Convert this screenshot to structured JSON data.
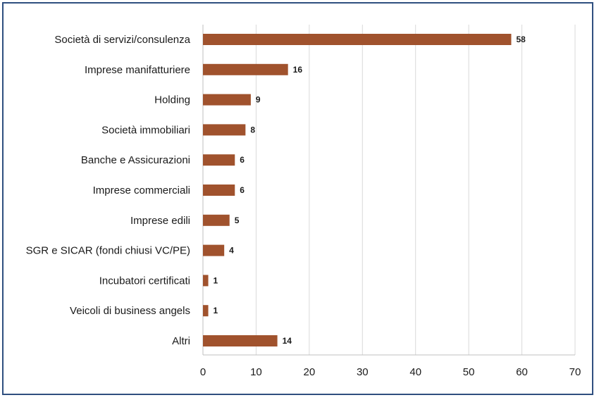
{
  "chart_data": {
    "type": "bar",
    "orientation": "horizontal",
    "categories": [
      "Società di servizi/consulenza",
      "Imprese manifatturiere",
      "Holding",
      "Società immobiliari",
      "Banche e Assicurazioni",
      "Imprese commerciali",
      "Imprese edili",
      "SGR e SICAR (fondi chiusi VC/PE)",
      "Incubatori certificati",
      "Veicoli di business angels",
      "Altri"
    ],
    "values": [
      58,
      16,
      9,
      8,
      6,
      6,
      5,
      4,
      1,
      1,
      14
    ],
    "xlim": [
      0,
      70
    ],
    "xticks": [
      0,
      10,
      20,
      30,
      40,
      50,
      60,
      70
    ],
    "grid": true,
    "data_labels": true,
    "bar_color": "#a0522d",
    "frame_color": "#2f4f7f"
  }
}
